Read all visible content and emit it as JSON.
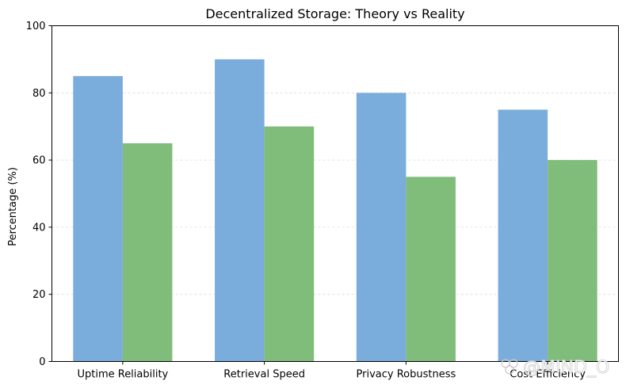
{
  "chart_data": {
    "type": "bar",
    "title": "Decentralized Storage: Theory vs Reality",
    "xlabel": "",
    "ylabel": "Percentage (%)",
    "categories": [
      "Uptime Reliability",
      "Retrieval Speed",
      "Privacy Robustness",
      "Cost Efficiency"
    ],
    "series": [
      {
        "values": [
          85,
          90,
          80,
          75
        ],
        "color": "#7aacdc"
      },
      {
        "values": [
          65,
          70,
          55,
          60
        ],
        "color": "#80bd7b"
      }
    ],
    "ylim": [
      0,
      100
    ],
    "yticks": [
      0,
      20,
      40,
      60,
      80,
      100
    ],
    "grid": "horizontal-dashed",
    "legend": "none"
  },
  "watermark": {
    "text": "@MIND_O",
    "icon": "clover-logo-icon"
  }
}
